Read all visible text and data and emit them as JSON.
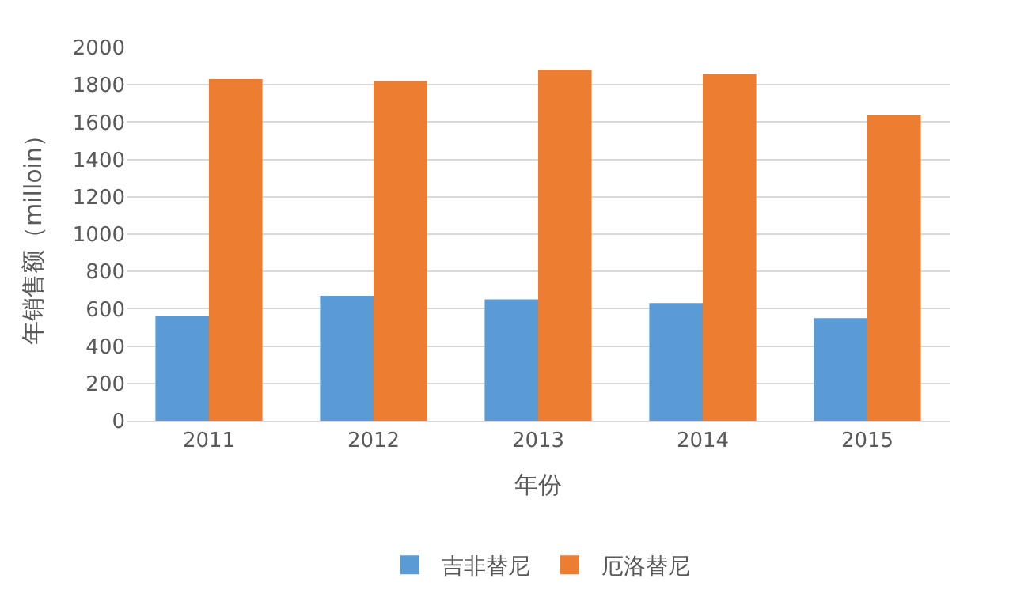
{
  "chart_data": {
    "type": "bar",
    "xlabel": "年份",
    "ylabel": "年销售额（milloin）",
    "categories": [
      "2011",
      "2012",
      "2013",
      "2014",
      "2015"
    ],
    "series": [
      {
        "name": "吉非替尼",
        "color": "#5b9bd5",
        "values": [
          560,
          670,
          650,
          630,
          550
        ]
      },
      {
        "name": "厄洛替尼",
        "color": "#ed7d31",
        "values": [
          1830,
          1820,
          1880,
          1860,
          1640
        ]
      }
    ],
    "ylim": [
      0,
      2000
    ],
    "yticks": [
      0,
      200,
      400,
      600,
      800,
      1000,
      1200,
      1400,
      1600,
      1800,
      2000
    ],
    "grid": "y",
    "legend": "bottom"
  }
}
